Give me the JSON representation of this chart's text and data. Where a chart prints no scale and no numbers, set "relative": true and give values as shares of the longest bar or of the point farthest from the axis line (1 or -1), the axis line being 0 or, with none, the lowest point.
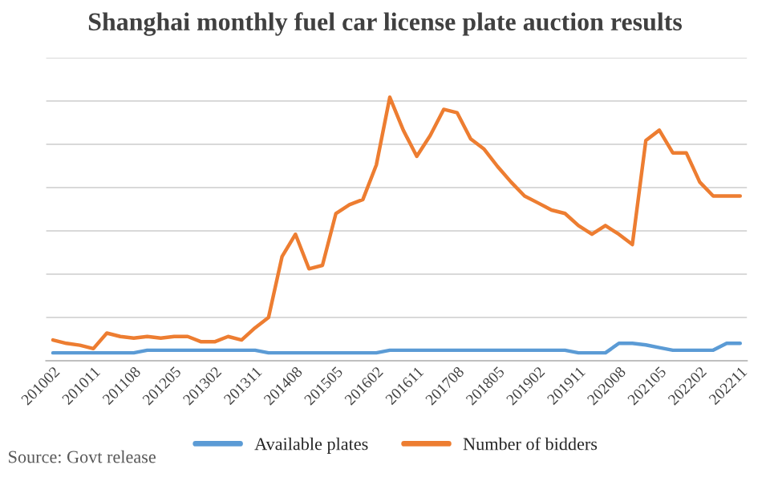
{
  "chart_data": {
    "type": "line",
    "title": "Shanghai monthly fuel car license plate auction results",
    "relative": true,
    "grid": "y",
    "legend": "bottom",
    "categories": [
      "201002",
      null,
      null,
      "201011",
      null,
      null,
      "201108",
      null,
      null,
      "201205",
      null,
      null,
      "201302",
      null,
      null,
      "201311",
      null,
      null,
      "201408",
      null,
      null,
      "201505",
      null,
      null,
      "201602",
      null,
      null,
      "201611",
      null,
      null,
      "201708",
      null,
      null,
      "201805",
      null,
      null,
      "201902",
      null,
      null,
      "201911",
      null,
      null,
      "202008",
      null,
      null,
      "202105",
      null,
      null,
      "202202",
      null,
      null,
      "202211"
    ],
    "series": [
      {
        "name": "Available plates",
        "color": "#5b9bd5",
        "values": [
          0.03,
          0.03,
          0.03,
          0.03,
          0.03,
          0.03,
          0.03,
          0.04,
          0.04,
          0.04,
          0.04,
          0.04,
          0.04,
          0.04,
          0.04,
          0.04,
          0.03,
          0.03,
          0.03,
          0.03,
          0.03,
          0.03,
          0.03,
          0.03,
          0.03,
          0.04,
          0.04,
          0.04,
          0.04,
          0.04,
          0.04,
          0.04,
          0.04,
          0.04,
          0.04,
          0.04,
          0.04,
          0.04,
          0.04,
          0.03,
          0.03,
          0.03,
          0.066,
          0.066,
          0.06,
          0.05,
          0.04,
          0.04,
          0.04,
          0.04,
          0.066,
          0.066
        ]
      },
      {
        "name": "Number of bidders",
        "color": "#ed7d31",
        "values": [
          0.079,
          0.066,
          0.059,
          0.046,
          0.105,
          0.092,
          0.086,
          0.092,
          0.086,
          0.092,
          0.092,
          0.072,
          0.072,
          0.092,
          0.079,
          0.125,
          0.164,
          0.395,
          0.48,
          0.349,
          0.362,
          0.559,
          0.592,
          0.612,
          0.743,
          1.0,
          0.875,
          0.776,
          0.855,
          0.954,
          0.941,
          0.842,
          0.803,
          0.737,
          0.678,
          0.625,
          0.599,
          0.572,
          0.559,
          0.513,
          0.48,
          0.513,
          0.48,
          0.441,
          0.836,
          0.875,
          0.789,
          0.789,
          0.678,
          0.625,
          0.625,
          0.625
        ]
      }
    ],
    "annotations": [
      "Source: Govt release"
    ]
  }
}
